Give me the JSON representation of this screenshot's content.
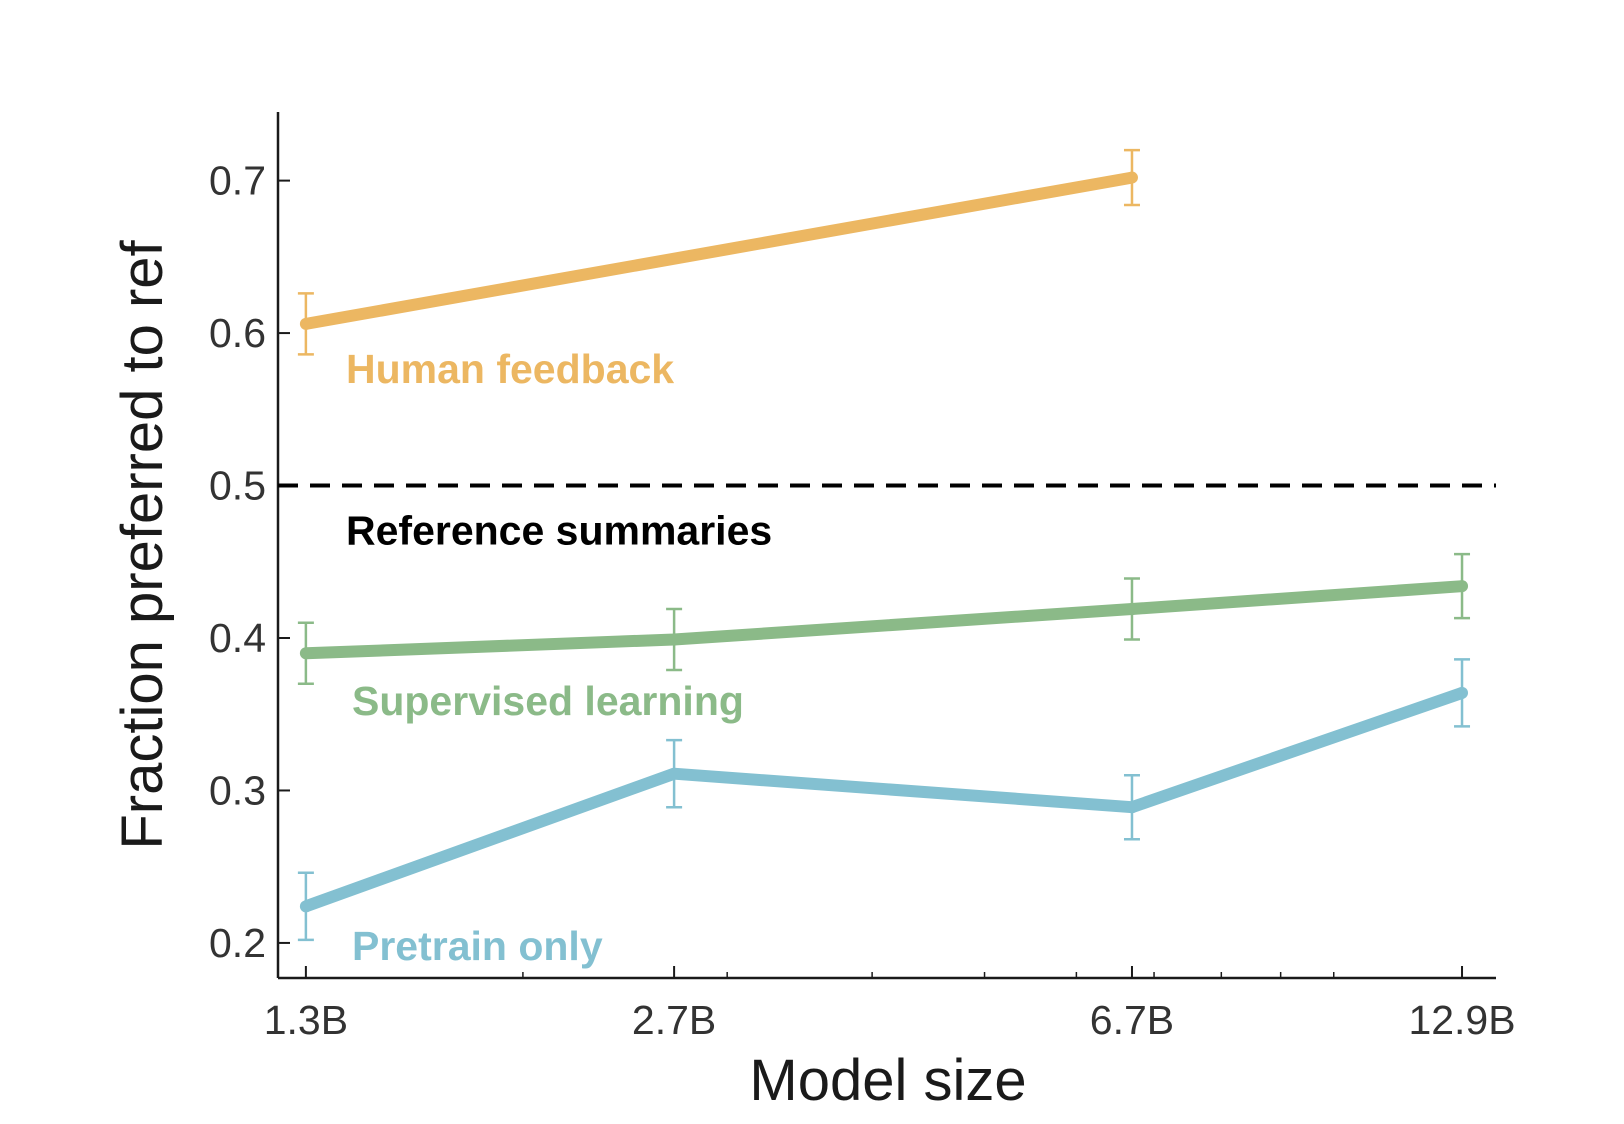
{
  "chart_data": {
    "type": "line",
    "title": "",
    "xlabel": "Model size",
    "ylabel": "Fraction preferred to ref",
    "x_scale": "log",
    "x_ticks": [
      {
        "value": 1.3,
        "label": "1.3B"
      },
      {
        "value": 2.7,
        "label": "2.7B"
      },
      {
        "value": 6.7,
        "label": "6.7B"
      },
      {
        "value": 12.9,
        "label": "12.9B"
      }
    ],
    "x_minor_ticks": [
      2,
      3,
      4,
      5,
      6,
      7,
      8,
      9,
      10
    ],
    "y_ticks": [
      {
        "value": 0.2,
        "label": "0.2"
      },
      {
        "value": 0.3,
        "label": "0.3"
      },
      {
        "value": 0.4,
        "label": "0.4"
      },
      {
        "value": 0.5,
        "label": "0.5"
      },
      {
        "value": 0.6,
        "label": "0.6"
      },
      {
        "value": 0.7,
        "label": "0.7"
      }
    ],
    "xlim": [
      1.23,
      13.8
    ],
    "ylim": [
      0.177,
      0.745
    ],
    "grid": false,
    "legend": "inline labels below each line",
    "reference_line": {
      "y": 0.5,
      "label": "Reference summaries",
      "style": "dashed",
      "color": "#000000"
    },
    "series": [
      {
        "name": "Human feedback",
        "color": "#ECB762",
        "x": [
          1.3,
          6.7
        ],
        "y": [
          0.606,
          0.702
        ],
        "err": [
          0.02,
          0.018
        ]
      },
      {
        "name": "Supervised learning",
        "color": "#8BBA88",
        "x": [
          1.3,
          2.7,
          6.7,
          12.9
        ],
        "y": [
          0.39,
          0.399,
          0.419,
          0.434
        ],
        "err": [
          0.02,
          0.02,
          0.02,
          0.021
        ]
      },
      {
        "name": "Pretrain only",
        "color": "#83C0D1",
        "x": [
          1.3,
          2.7,
          6.7,
          12.9
        ],
        "y": [
          0.224,
          0.311,
          0.289,
          0.364
        ],
        "err": [
          0.022,
          0.022,
          0.021,
          0.022
        ]
      }
    ]
  }
}
